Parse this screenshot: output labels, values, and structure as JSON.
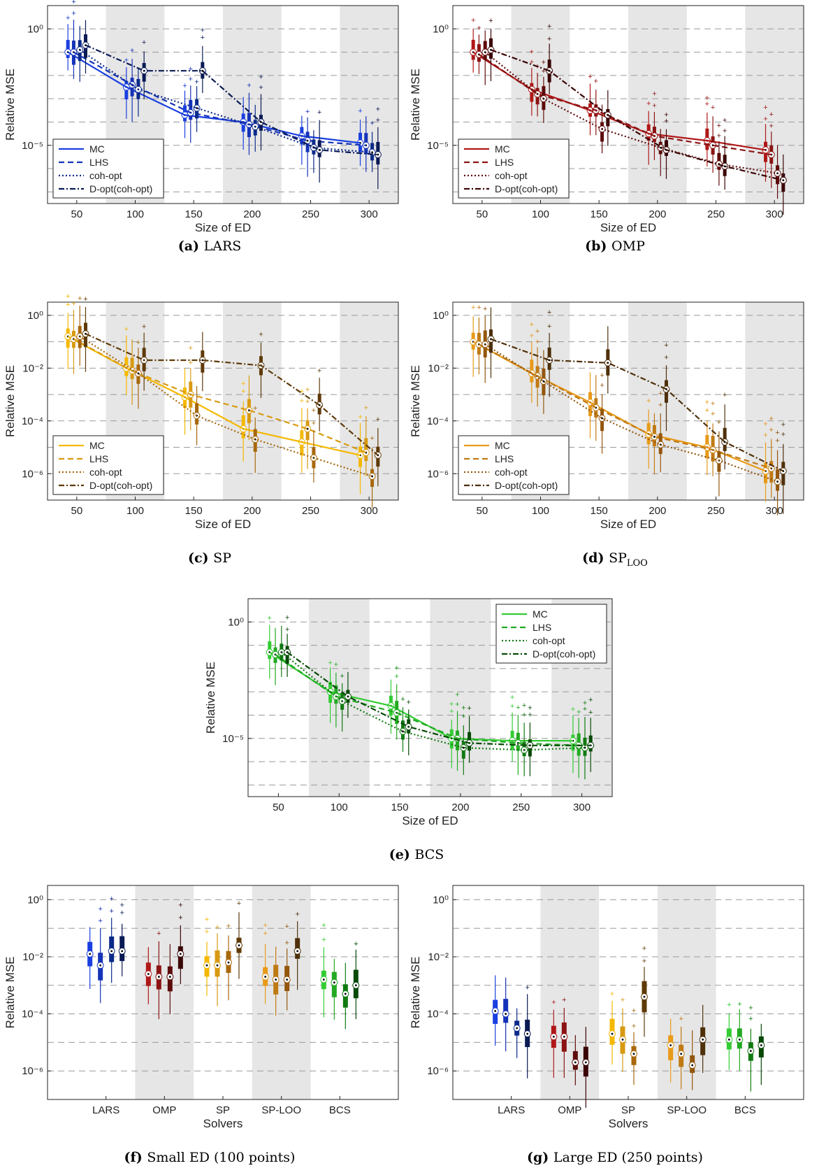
{
  "colors": {
    "LARS": [
      "#1a3fe0",
      "#1533b8",
      "#0b2a8a",
      "#0a1a55"
    ],
    "OMP": [
      "#b01818",
      "#8c1313",
      "#5e0b0b",
      "#3a0505"
    ],
    "SP": [
      "#f5b800",
      "#d89a12",
      "#a8680c",
      "#5e3a08"
    ],
    "SPLOO": [
      "#e89a18",
      "#c07a14",
      "#94560c",
      "#4e300a"
    ],
    "BCS": [
      "#33cc33",
      "#22aa22",
      "#117a11",
      "#064a06"
    ]
  },
  "legend": [
    "MC",
    "LHS",
    "coh-opt",
    "D-opt(coh-opt)"
  ],
  "chart_data": [
    {
      "id": "a",
      "type": "box",
      "caption_tag": "(a)",
      "caption_text": "LARS",
      "color_set": "LARS",
      "xlabel": "Size of ED",
      "ylabel": "Relative MSE",
      "x_ticks": [
        50,
        100,
        150,
        200,
        250,
        300
      ],
      "y_scale": "log",
      "y_tick_labels": [
        "10^0",
        "10^-5"
      ],
      "ylim_log10": [
        -7.5,
        1
      ],
      "legend_position": "bottom-left",
      "categories": [
        50,
        100,
        150,
        200,
        250,
        300
      ],
      "series": [
        {
          "name": "MC",
          "log10_median": [
            -1.0,
            -2.5,
            -3.7,
            -4.0,
            -4.6,
            -4.9
          ]
        },
        {
          "name": "LHS",
          "log10_median": [
            -1.0,
            -2.4,
            -3.6,
            -4.1,
            -4.8,
            -5.0
          ]
        },
        {
          "name": "coh-opt",
          "log10_median": [
            -0.9,
            -2.6,
            -3.4,
            -4.2,
            -5.1,
            -5.3
          ]
        },
        {
          "name": "D-opt(coh-opt)",
          "log10_median": [
            -0.7,
            -1.8,
            -1.8,
            -4.0,
            -5.2,
            -5.4
          ]
        }
      ]
    },
    {
      "id": "b",
      "type": "box",
      "caption_tag": "(b)",
      "caption_text": "OMP",
      "color_set": "OMP",
      "xlabel": "Size of ED",
      "ylabel": "Relative MSE",
      "x_ticks": [
        50,
        100,
        150,
        200,
        250,
        300
      ],
      "y_scale": "log",
      "y_tick_labels": [
        "10^0",
        "10^-5"
      ],
      "ylim_log10": [
        -7.5,
        1
      ],
      "legend_position": "bottom-left",
      "categories": [
        50,
        100,
        150,
        200,
        250,
        300
      ],
      "series": [
        {
          "name": "MC",
          "log10_median": [
            -1.0,
            -2.6,
            -3.5,
            -4.5,
            -4.8,
            -5.2
          ]
        },
        {
          "name": "LHS",
          "log10_median": [
            -1.1,
            -2.8,
            -3.5,
            -4.6,
            -5.0,
            -5.4
          ]
        },
        {
          "name": "coh-opt",
          "log10_median": [
            -1.0,
            -3.0,
            -4.3,
            -5.1,
            -5.8,
            -6.2
          ]
        },
        {
          "name": "D-opt(coh-opt)",
          "log10_median": [
            -0.9,
            -1.8,
            -3.7,
            -5.2,
            -5.9,
            -6.5
          ]
        }
      ]
    },
    {
      "id": "c",
      "type": "box",
      "caption_tag": "(c)",
      "caption_text": "SP",
      "color_set": "SP",
      "xlabel": "Size of ED",
      "ylabel": "Relative MSE",
      "x_ticks": [
        50,
        100,
        150,
        200,
        250,
        300
      ],
      "y_scale": "log",
      "y_tick_labels": [
        "10^0",
        "10^-2",
        "10^-4",
        "10^-6"
      ],
      "ylim_log10": [
        -7,
        0.5
      ],
      "legend_position": "bottom-left",
      "categories": [
        50,
        100,
        150,
        200,
        250,
        300
      ],
      "series": [
        {
          "name": "MC",
          "log10_median": [
            -0.8,
            -2.0,
            -3.1,
            -4.3,
            -4.8,
            -5.3
          ]
        },
        {
          "name": "LHS",
          "log10_median": [
            -0.9,
            -2.1,
            -3.0,
            -3.6,
            -4.3,
            -5.2
          ]
        },
        {
          "name": "coh-opt",
          "log10_median": [
            -0.8,
            -2.2,
            -3.8,
            -4.7,
            -5.4,
            -6.1
          ]
        },
        {
          "name": "D-opt(coh-opt)",
          "log10_median": [
            -0.7,
            -1.7,
            -1.7,
            -1.9,
            -3.4,
            -5.3
          ]
        }
      ]
    },
    {
      "id": "d",
      "type": "box",
      "caption_tag": "(d)",
      "caption_text": "SP",
      "caption_sub": "LOO",
      "color_set": "SPLOO",
      "xlabel": "Size of ED",
      "ylabel": "Relative MSE",
      "x_ticks": [
        50,
        100,
        150,
        200,
        250,
        300
      ],
      "y_scale": "log",
      "y_tick_labels": [
        "10^0",
        "10^-2",
        "10^-4",
        "10^-6"
      ],
      "ylim_log10": [
        -7,
        0.5
      ],
      "legend_position": "bottom-left",
      "categories": [
        50,
        100,
        150,
        200,
        250,
        300
      ],
      "series": [
        {
          "name": "MC",
          "log10_median": [
            -1.0,
            -2.2,
            -3.3,
            -4.5,
            -5.0,
            -5.9
          ]
        },
        {
          "name": "LHS",
          "log10_median": [
            -1.1,
            -2.3,
            -3.5,
            -4.6,
            -5.1,
            -5.8
          ]
        },
        {
          "name": "coh-opt",
          "log10_median": [
            -1.1,
            -2.5,
            -3.9,
            -4.9,
            -5.5,
            -6.3
          ]
        },
        {
          "name": "D-opt(coh-opt)",
          "log10_median": [
            -0.9,
            -1.7,
            -1.8,
            -2.8,
            -4.8,
            -5.9
          ]
        }
      ]
    },
    {
      "id": "e",
      "type": "box",
      "caption_tag": "(e)",
      "caption_text": "BCS",
      "color_set": "BCS",
      "xlabel": "Size of ED",
      "ylabel": "Relative MSE",
      "x_ticks": [
        50,
        100,
        150,
        200,
        250,
        300
      ],
      "y_scale": "log",
      "y_tick_labels": [
        "10^0",
        "10^-5"
      ],
      "ylim_log10": [
        -7.5,
        1
      ],
      "legend_position": "top-right",
      "categories": [
        50,
        100,
        150,
        200,
        250,
        300
      ],
      "series": [
        {
          "name": "MC",
          "log10_median": [
            -1.3,
            -3.0,
            -3.6,
            -5.0,
            -5.1,
            -5.1
          ]
        },
        {
          "name": "LHS",
          "log10_median": [
            -1.4,
            -3.2,
            -3.9,
            -5.0,
            -5.2,
            -5.3
          ]
        },
        {
          "name": "coh-opt",
          "log10_median": [
            -1.3,
            -3.4,
            -4.7,
            -5.4,
            -5.5,
            -5.4
          ]
        },
        {
          "name": "D-opt(coh-opt)",
          "log10_median": [
            -1.3,
            -3.2,
            -4.5,
            -5.2,
            -5.3,
            -5.3
          ]
        }
      ]
    },
    {
      "id": "f",
      "type": "box",
      "caption_tag": "(f)",
      "caption_text": "Small ED (100 points)",
      "xlabel": "Solvers",
      "ylabel": "Relative MSE",
      "categories": [
        "LARS",
        "OMP",
        "SP",
        "SP-LOO",
        "BCS"
      ],
      "y_scale": "log",
      "y_tick_labels": [
        "10^0",
        "10^-2",
        "10^-4",
        "10^-6"
      ],
      "ylim_log10": [
        -7,
        0.5
      ],
      "series": [
        {
          "name": "MC",
          "log10_median": [
            -1.9,
            -2.6,
            -2.3,
            -2.7,
            -2.8
          ]
        },
        {
          "name": "LHS",
          "log10_median": [
            -2.3,
            -2.7,
            -2.3,
            -2.8,
            -2.9
          ]
        },
        {
          "name": "coh-opt",
          "log10_median": [
            -1.8,
            -2.7,
            -2.2,
            -2.8,
            -3.3
          ]
        },
        {
          "name": "D-opt(coh-opt)",
          "log10_median": [
            -1.8,
            -1.9,
            -1.6,
            -1.8,
            -3.0
          ]
        }
      ]
    },
    {
      "id": "g",
      "type": "box",
      "caption_tag": "(g)",
      "caption_text": "Large ED (250 points)",
      "xlabel": "Solvers",
      "ylabel": "Relative MSE",
      "categories": [
        "LARS",
        "OMP",
        "SP",
        "SP-LOO",
        "BCS"
      ],
      "y_scale": "log",
      "y_tick_labels": [
        "10^0",
        "10^-2",
        "10^-4",
        "10^-6"
      ],
      "ylim_log10": [
        -7,
        0.5
      ],
      "series": [
        {
          "name": "MC",
          "log10_median": [
            -3.9,
            -4.8,
            -4.7,
            -5.1,
            -4.9
          ]
        },
        {
          "name": "LHS",
          "log10_median": [
            -4.0,
            -4.8,
            -4.9,
            -5.4,
            -4.9
          ]
        },
        {
          "name": "coh-opt",
          "log10_median": [
            -4.5,
            -5.7,
            -5.4,
            -5.8,
            -5.3
          ]
        },
        {
          "name": "D-opt(coh-opt)",
          "log10_median": [
            -4.7,
            -5.7,
            -3.4,
            -4.9,
            -5.1
          ]
        }
      ]
    }
  ]
}
